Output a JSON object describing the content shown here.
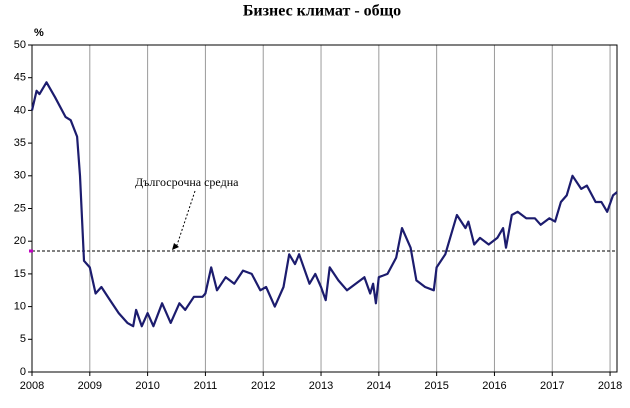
{
  "chart_data": {
    "type": "line",
    "title": "Бизнес климат - общо",
    "y_unit": "%",
    "annotation": "Дългосрочна средна",
    "average": 18.5,
    "xlim": [
      2008,
      2018.12
    ],
    "xticks": [
      2008,
      2009,
      2010,
      2011,
      2012,
      2013,
      2014,
      2015,
      2016,
      2017,
      2018
    ],
    "ylim": [
      0,
      50
    ],
    "yticks": [
      0,
      5,
      10,
      15,
      20,
      25,
      30,
      35,
      40,
      45,
      50
    ],
    "grid": true,
    "x": [
      2008.0,
      2008.08,
      2008.13,
      2008.25,
      2008.4,
      2008.58,
      2008.67,
      2008.78,
      2008.83,
      2008.9,
      2009.0,
      2009.1,
      2009.2,
      2009.35,
      2009.5,
      2009.65,
      2009.75,
      2009.8,
      2009.9,
      2010.0,
      2010.1,
      2010.25,
      2010.4,
      2010.55,
      2010.65,
      2010.8,
      2010.95,
      2011.0,
      2011.1,
      2011.2,
      2011.35,
      2011.5,
      2011.65,
      2011.8,
      2011.95,
      2012.05,
      2012.2,
      2012.35,
      2012.45,
      2012.55,
      2012.62,
      2012.8,
      2012.9,
      2013.0,
      2013.08,
      2013.15,
      2013.3,
      2013.45,
      2013.6,
      2013.75,
      2013.85,
      2013.9,
      2013.95,
      2014.0,
      2014.15,
      2014.3,
      2014.4,
      2014.55,
      2014.65,
      2014.8,
      2014.95,
      2015.0,
      2015.15,
      2015.35,
      2015.5,
      2015.55,
      2015.65,
      2015.75,
      2015.9,
      2016.05,
      2016.15,
      2016.2,
      2016.3,
      2016.4,
      2016.55,
      2016.7,
      2016.8,
      2016.95,
      2017.05,
      2017.15,
      2017.25,
      2017.35,
      2017.5,
      2017.6,
      2017.75,
      2017.85,
      2017.95,
      2018.05,
      2018.12
    ],
    "series": [
      {
        "color": "#1c1c6e",
        "values": [
          40,
          43,
          42.5,
          44.3,
          42,
          39,
          38.5,
          36,
          30,
          17,
          16,
          12,
          13,
          11,
          9,
          7.5,
          7,
          9.5,
          7,
          9,
          7,
          10.5,
          7.5,
          10.5,
          9.5,
          11.5,
          11.5,
          12,
          16,
          12.5,
          14.5,
          13.5,
          15.5,
          15,
          12.5,
          13,
          10,
          13,
          18,
          16.5,
          18,
          13.5,
          15,
          13,
          11,
          16,
          14,
          12.5,
          13.5,
          14.5,
          12,
          13.5,
          10.5,
          14.5,
          15,
          17.5,
          22,
          19,
          14,
          13,
          12.5,
          16,
          18,
          24,
          22,
          23,
          19.5,
          20.5,
          19.5,
          20.5,
          22,
          19,
          24,
          24.5,
          23.5,
          23.5,
          22.5,
          23.5,
          23,
          26,
          27,
          30,
          28,
          28.5,
          26,
          26,
          24.5,
          27,
          27.5
        ]
      }
    ]
  }
}
